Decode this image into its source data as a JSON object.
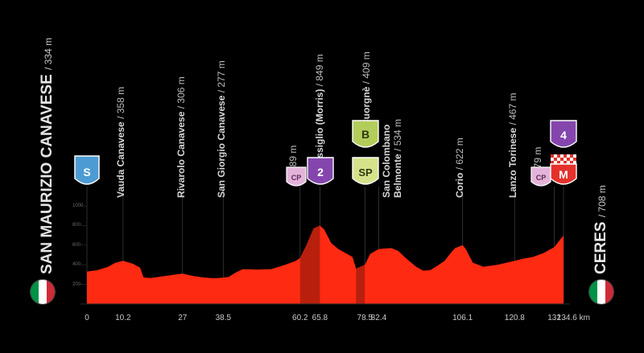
{
  "chart_data": {
    "type": "area",
    "x_unit": "km",
    "distance_ticks": [
      {
        "km": 0,
        "label": "0"
      },
      {
        "km": 10.2,
        "label": "10.2"
      },
      {
        "km": 27,
        "label": "27"
      },
      {
        "km": 38.5,
        "label": "38.5"
      },
      {
        "km": 60.2,
        "label": "60.2"
      },
      {
        "km": 65.8,
        "label": "65.8"
      },
      {
        "km": 78.5,
        "label": "78.5"
      },
      {
        "km": 82.4,
        "label": "82.4"
      },
      {
        "km": 106.1,
        "label": "106.1"
      },
      {
        "km": 120.8,
        "label": "120.8"
      },
      {
        "km": 132,
        "label": "132"
      },
      {
        "km": 134.6,
        "label": "134.6 km"
      }
    ],
    "y_ticks": [
      {
        "value": 200,
        "label": "200"
      },
      {
        "value": 400,
        "label": "400"
      },
      {
        "value": 600,
        "label": "600"
      },
      {
        "value": 800,
        "label": "800"
      },
      {
        "value": 1000,
        "label": "1000"
      }
    ],
    "ylim": [
      0,
      1050
    ],
    "xlim": [
      0,
      134.6
    ],
    "colors": {
      "profile": "#ff2a12",
      "climb_shade": "#b8200d",
      "background": "#000000",
      "lines": "#3a3a3a"
    },
    "profile": [
      [
        0,
        330
      ],
      [
        3,
        345
      ],
      [
        6,
        380
      ],
      [
        8,
        420
      ],
      [
        10.2,
        440
      ],
      [
        13,
        410
      ],
      [
        15,
        370
      ],
      [
        16,
        270
      ],
      [
        18,
        265
      ],
      [
        22,
        285
      ],
      [
        25,
        300
      ],
      [
        27,
        310
      ],
      [
        30,
        285
      ],
      [
        33,
        270
      ],
      [
        36,
        262
      ],
      [
        38.5,
        268
      ],
      [
        40,
        275
      ],
      [
        42,
        320
      ],
      [
        44,
        355
      ],
      [
        48,
        350
      ],
      [
        52,
        355
      ],
      [
        56,
        400
      ],
      [
        59,
        440
      ],
      [
        60.2,
        470
      ],
      [
        62,
        600
      ],
      [
        64,
        770
      ],
      [
        65.8,
        800
      ],
      [
        67,
        760
      ],
      [
        69,
        620
      ],
      [
        71,
        560
      ],
      [
        73,
        520
      ],
      [
        75,
        480
      ],
      [
        76,
        360
      ],
      [
        78.5,
        400
      ],
      [
        80,
        510
      ],
      [
        82.4,
        560
      ],
      [
        86,
        570
      ],
      [
        88,
        540
      ],
      [
        90,
        470
      ],
      [
        93,
        380
      ],
      [
        95,
        340
      ],
      [
        97,
        345
      ],
      [
        99,
        390
      ],
      [
        101,
        440
      ],
      [
        103,
        530
      ],
      [
        104,
        570
      ],
      [
        106.1,
        600
      ],
      [
        107,
        560
      ],
      [
        109,
        420
      ],
      [
        112,
        380
      ],
      [
        116,
        400
      ],
      [
        120.8,
        440
      ],
      [
        123,
        460
      ],
      [
        126,
        480
      ],
      [
        129,
        520
      ],
      [
        132,
        580
      ],
      [
        134.6,
        700
      ]
    ],
    "shaded_ranges": [
      [
        60.2,
        65.8
      ],
      [
        76,
        78.5
      ]
    ]
  },
  "start": {
    "name": "SAN MAURIZIO CANAVESE",
    "elevation": "/ 334 m",
    "badge": "S"
  },
  "finish": {
    "name": "CERES",
    "elevation": "/ 708 m"
  },
  "waypoints": [
    {
      "name": "Vauda Canavese",
      "elevation": "/ 358 m"
    },
    {
      "name": "Rivarolo Canavese",
      "elevation": "/ 306 m"
    },
    {
      "name": "San Giorgio Canavese",
      "elevation": "/ 277 m"
    },
    {
      "name": "",
      "elevation": "489 m"
    },
    {
      "name": "Issiglio (Morris)",
      "elevation": "/ 849 m"
    },
    {
      "name": "Cuorgnè",
      "elevation": "/ 409 m"
    },
    {
      "name": "San Colombano",
      "elevation": ""
    },
    {
      "name": "Belmonte",
      "elevation": "/ 534 m"
    },
    {
      "name": "Corio",
      "elevation": "/ 622 m"
    },
    {
      "name": "Lanzo Torinese",
      "elevation": "/ 467 m"
    },
    {
      "name": "",
      "elevation": "479 m"
    }
  ],
  "badges": [
    {
      "text": "CP",
      "color": "#e4b3da",
      "textColor": "#5a2a55"
    },
    {
      "text": "2",
      "color": "#8446ad",
      "textColor": "#ffffff"
    },
    {
      "text": "B",
      "color": "#b3cd5b",
      "textColor": "#2d3a10"
    },
    {
      "text": "SP",
      "color": "#d6e28a",
      "textColor": "#2d3a10"
    },
    {
      "text": "CP",
      "color": "#e4b3da",
      "textColor": "#5a2a55"
    },
    {
      "text": "4",
      "color": "#8446ad",
      "textColor": "#ffffff"
    },
    {
      "text": "M",
      "color": "#e4312b",
      "textColor": "#ffffff"
    }
  ],
  "start_badge_color": "#4d9bd3",
  "flag_colors": [
    "#009246",
    "#ffffff",
    "#ce2b37"
  ]
}
